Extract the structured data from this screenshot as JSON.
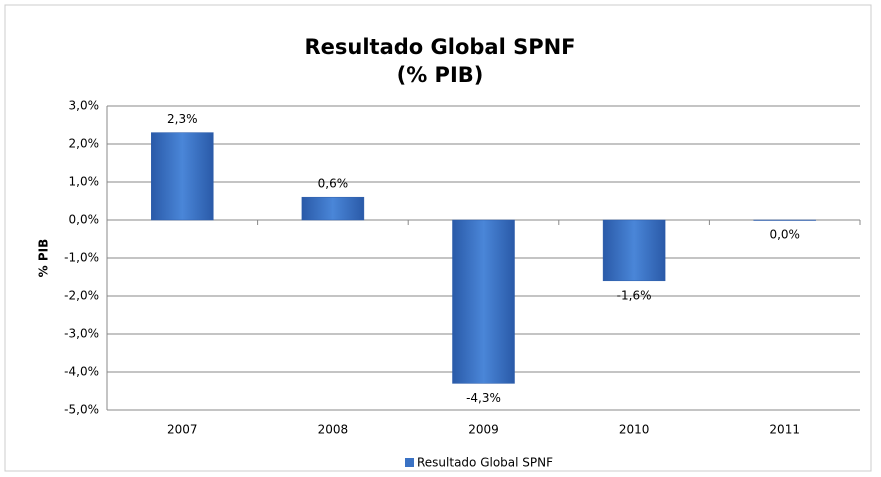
{
  "chart_data": {
    "type": "bar",
    "title": "Resultado Global SPNF",
    "subtitle": "(% PIB)",
    "y_label": "% PIB",
    "categories": [
      "2007",
      "2008",
      "2009",
      "2010",
      "2011"
    ],
    "series": [
      {
        "name": "Resultado Global SPNF",
        "color": "#3a72c4",
        "values": [
          2.3,
          0.6,
          -4.3,
          -1.6,
          0.0
        ],
        "value_labels": [
          "2,3%",
          "0,6%",
          "-4,3%",
          "-1,6%",
          "0,0%"
        ]
      }
    ],
    "ylim": [
      -5,
      3
    ],
    "yticks": [
      {
        "value": -5,
        "label": "-5,0%"
      },
      {
        "value": -4,
        "label": "-4,0%"
      },
      {
        "value": -3,
        "label": "-3,0%"
      },
      {
        "value": -2,
        "label": "-2,0%"
      },
      {
        "value": -1,
        "label": "-1,0%"
      },
      {
        "value": 0,
        "label": "0,0%"
      },
      {
        "value": 1,
        "label": "1,0%"
      },
      {
        "value": 2,
        "label": "2,0%"
      },
      {
        "value": 3,
        "label": "3,0%"
      }
    ],
    "grid": true,
    "legend": "bottom"
  }
}
